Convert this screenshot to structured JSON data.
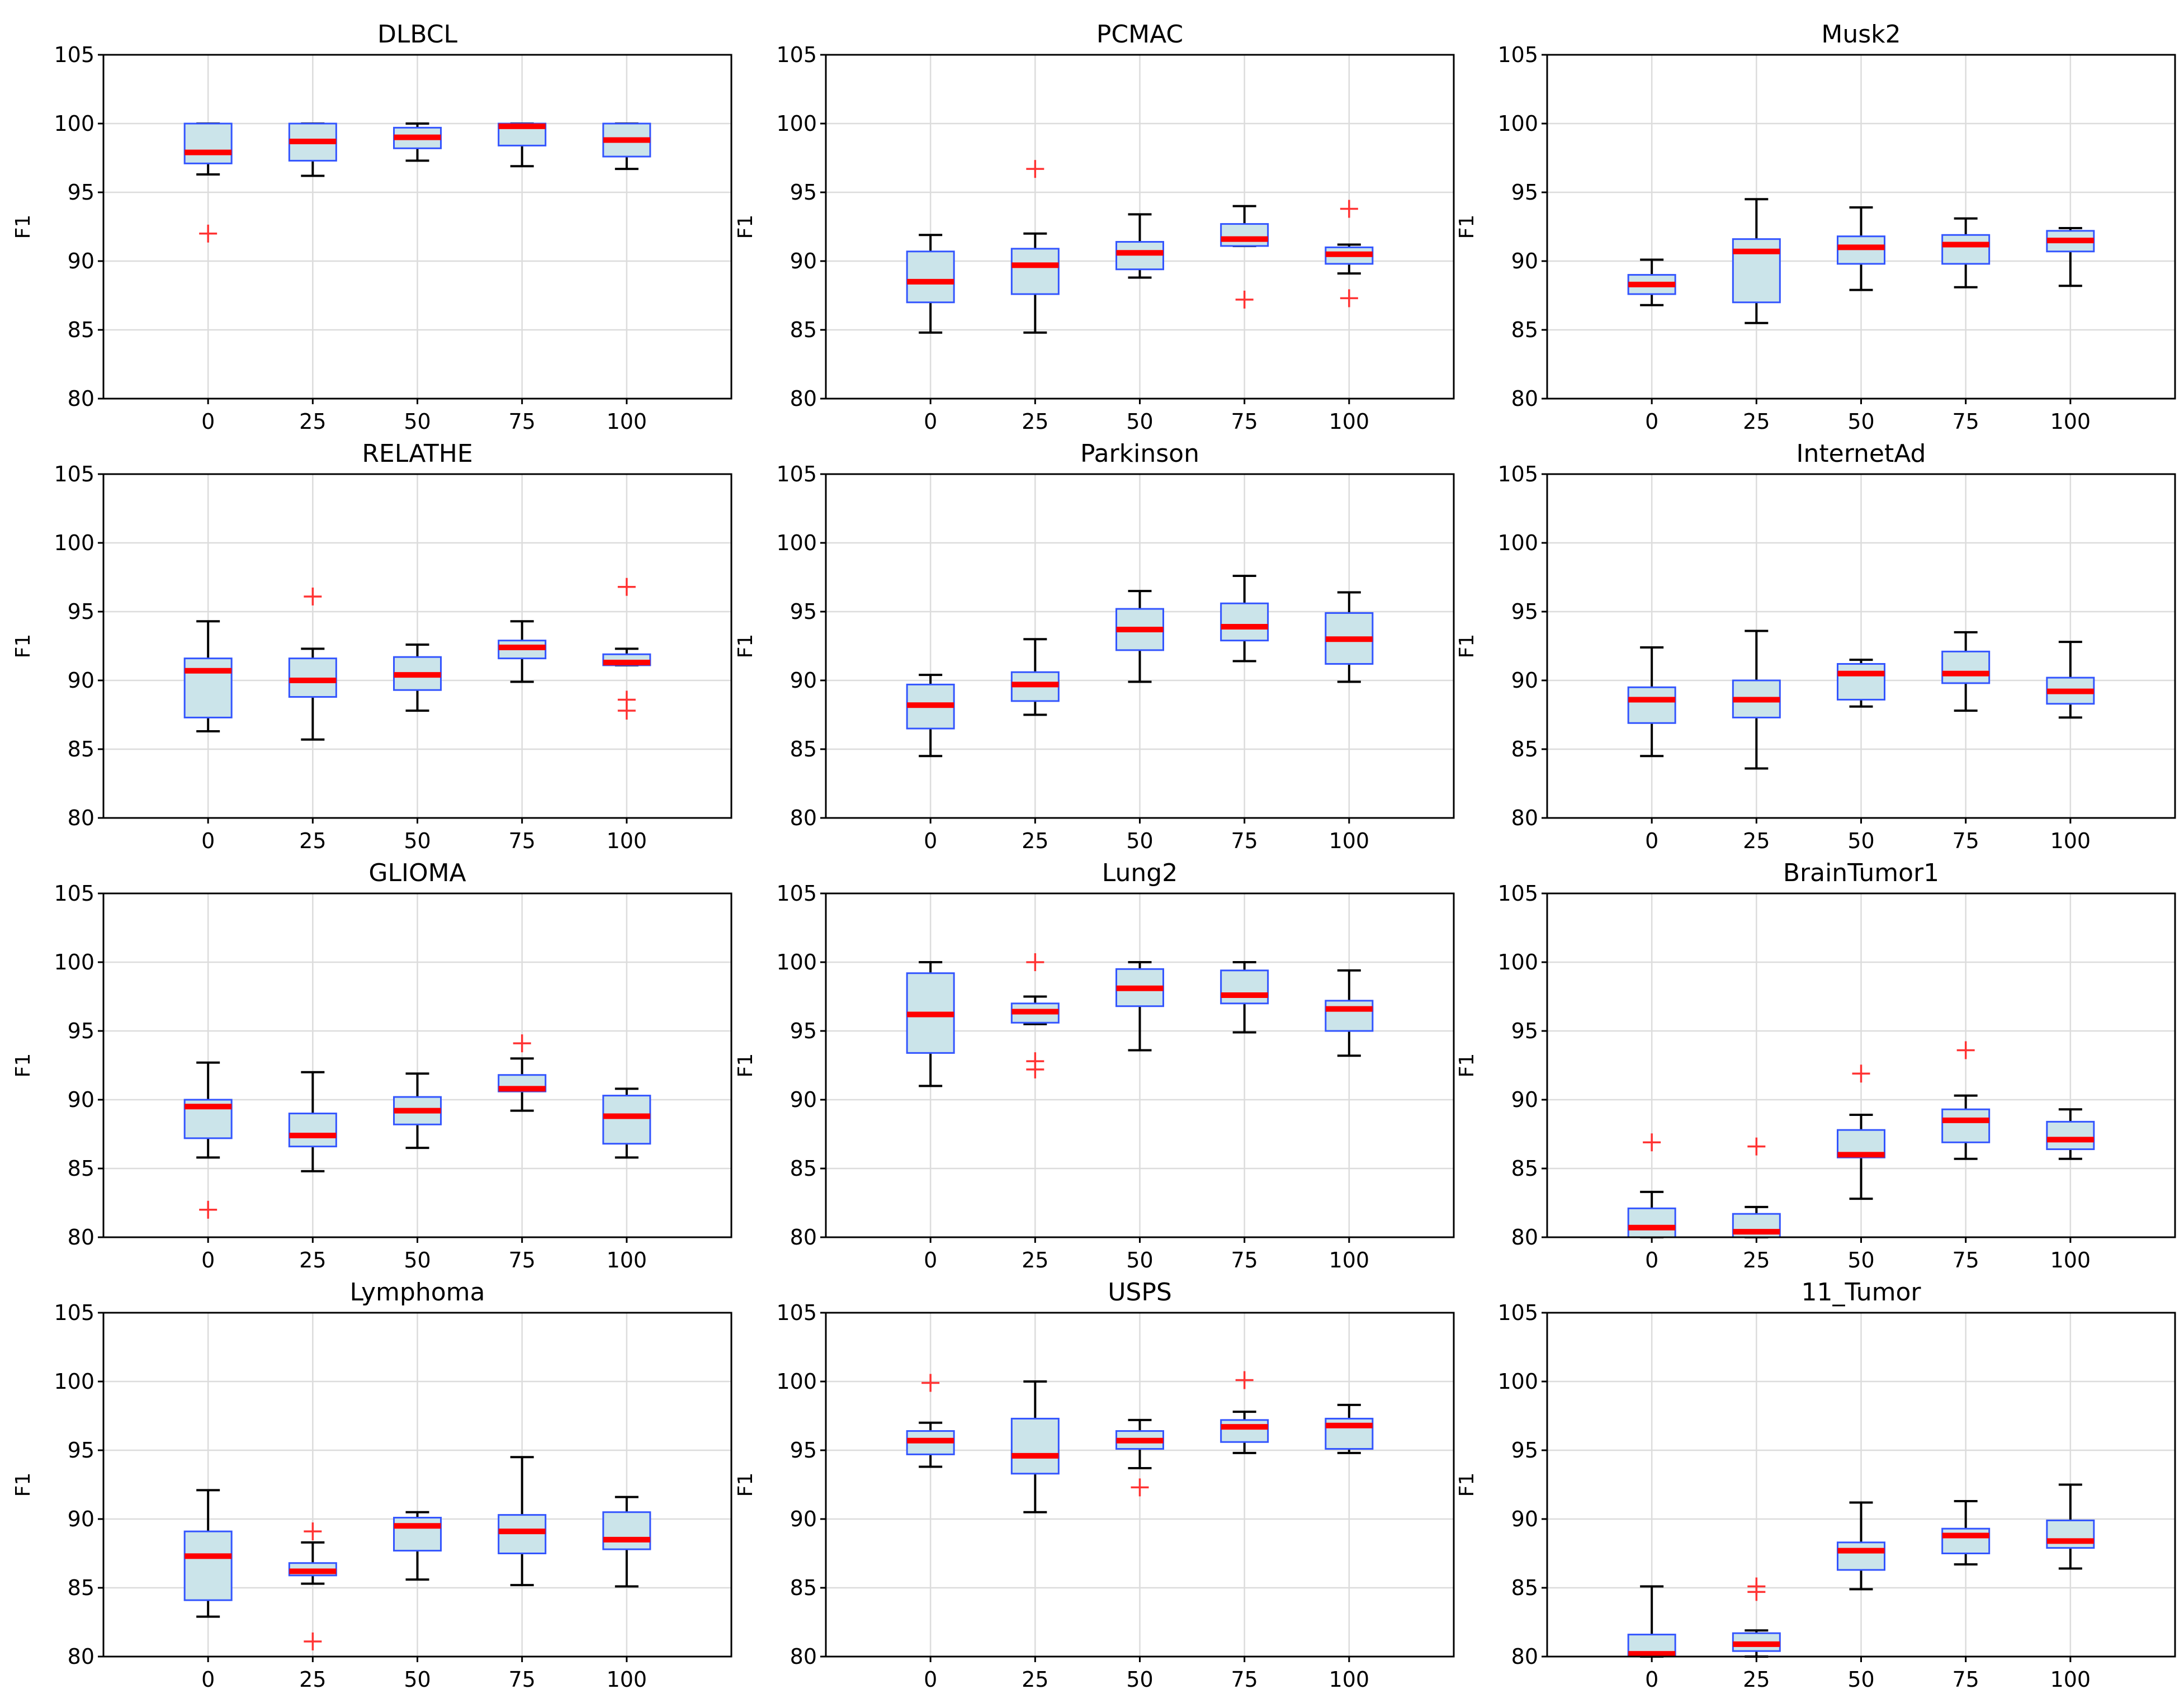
{
  "chart_data": {
    "type": "boxplot",
    "layout": "4x3 grid",
    "colors": {
      "box_fill": "#cbe4ea",
      "box_edge": "#3355ff",
      "median": "#ff0000",
      "flier": "#ff3333",
      "whisker": "#000000",
      "grid": "#dcdcdc"
    },
    "categories": [
      "0",
      "25",
      "50",
      "75",
      "100"
    ],
    "ylabel": "F1",
    "ylim": [
      80,
      105
    ],
    "yticks": [
      80,
      85,
      90,
      95,
      100,
      105
    ],
    "panels": [
      {
        "title": "DLBCL",
        "boxes": [
          {
            "q1": 97.1,
            "median": 97.9,
            "q3": 100.0,
            "whislo": 96.3,
            "whishi": 100.0,
            "fliers": [
              92.0
            ]
          },
          {
            "q1": 97.3,
            "median": 98.7,
            "q3": 100.0,
            "whislo": 96.2,
            "whishi": 100.0,
            "fliers": []
          },
          {
            "q1": 98.2,
            "median": 99.0,
            "q3": 99.7,
            "whislo": 97.3,
            "whishi": 100.0,
            "fliers": []
          },
          {
            "q1": 98.4,
            "median": 99.8,
            "q3": 100.0,
            "whislo": 96.9,
            "whishi": 100.0,
            "fliers": []
          },
          {
            "q1": 97.6,
            "median": 98.8,
            "q3": 100.0,
            "whislo": 96.7,
            "whishi": 100.0,
            "fliers": []
          }
        ]
      },
      {
        "title": "PCMAC",
        "boxes": [
          {
            "q1": 87.0,
            "median": 88.5,
            "q3": 90.7,
            "whislo": 84.8,
            "whishi": 91.9,
            "fliers": []
          },
          {
            "q1": 87.6,
            "median": 89.7,
            "q3": 90.9,
            "whislo": 84.8,
            "whishi": 92.0,
            "fliers": [
              96.7
            ]
          },
          {
            "q1": 89.4,
            "median": 90.6,
            "q3": 91.4,
            "whislo": 88.8,
            "whishi": 93.4,
            "fliers": []
          },
          {
            "q1": 91.1,
            "median": 91.6,
            "q3": 92.7,
            "whislo": 91.1,
            "whishi": 94.0,
            "fliers": [
              87.2
            ]
          },
          {
            "q1": 89.8,
            "median": 90.5,
            "q3": 91.0,
            "whislo": 89.1,
            "whishi": 91.2,
            "fliers": [
              93.8,
              87.3
            ]
          }
        ]
      },
      {
        "title": "Musk2",
        "boxes": [
          {
            "q1": 87.6,
            "median": 88.3,
            "q3": 89.0,
            "whislo": 86.8,
            "whishi": 90.1,
            "fliers": []
          },
          {
            "q1": 87.0,
            "median": 90.7,
            "q3": 91.6,
            "whislo": 85.5,
            "whishi": 94.5,
            "fliers": []
          },
          {
            "q1": 89.8,
            "median": 91.0,
            "q3": 91.8,
            "whislo": 87.9,
            "whishi": 93.9,
            "fliers": []
          },
          {
            "q1": 89.8,
            "median": 91.2,
            "q3": 91.9,
            "whislo": 88.1,
            "whishi": 93.1,
            "fliers": []
          },
          {
            "q1": 90.7,
            "median": 91.5,
            "q3": 92.2,
            "whislo": 88.2,
            "whishi": 92.4,
            "fliers": []
          }
        ]
      },
      {
        "title": "RELATHE",
        "boxes": [
          {
            "q1": 87.3,
            "median": 90.7,
            "q3": 91.6,
            "whislo": 86.3,
            "whishi": 94.3,
            "fliers": []
          },
          {
            "q1": 88.8,
            "median": 90.0,
            "q3": 91.6,
            "whislo": 85.7,
            "whishi": 92.3,
            "fliers": [
              96.1
            ]
          },
          {
            "q1": 89.3,
            "median": 90.4,
            "q3": 91.7,
            "whislo": 87.8,
            "whishi": 92.6,
            "fliers": []
          },
          {
            "q1": 91.6,
            "median": 92.4,
            "q3": 92.9,
            "whislo": 89.9,
            "whishi": 94.3,
            "fliers": []
          },
          {
            "q1": 91.1,
            "median": 91.3,
            "q3": 91.9,
            "whislo": 91.1,
            "whishi": 92.3,
            "fliers": [
              96.8,
              88.6,
              87.8
            ]
          }
        ]
      },
      {
        "title": "Parkinson",
        "boxes": [
          {
            "q1": 86.5,
            "median": 88.2,
            "q3": 89.7,
            "whislo": 84.5,
            "whishi": 90.4,
            "fliers": []
          },
          {
            "q1": 88.5,
            "median": 89.7,
            "q3": 90.6,
            "whislo": 87.5,
            "whishi": 93.0,
            "fliers": []
          },
          {
            "q1": 92.2,
            "median": 93.7,
            "q3": 95.2,
            "whislo": 89.9,
            "whishi": 96.5,
            "fliers": []
          },
          {
            "q1": 92.9,
            "median": 93.9,
            "q3": 95.6,
            "whislo": 91.4,
            "whishi": 97.6,
            "fliers": []
          },
          {
            "q1": 91.2,
            "median": 93.0,
            "q3": 94.9,
            "whislo": 89.9,
            "whishi": 96.4,
            "fliers": []
          }
        ]
      },
      {
        "title": "InternetAd",
        "boxes": [
          {
            "q1": 86.9,
            "median": 88.6,
            "q3": 89.5,
            "whislo": 84.5,
            "whishi": 92.4,
            "fliers": []
          },
          {
            "q1": 87.3,
            "median": 88.6,
            "q3": 90.0,
            "whislo": 83.6,
            "whishi": 93.6,
            "fliers": []
          },
          {
            "q1": 88.6,
            "median": 90.5,
            "q3": 91.2,
            "whislo": 88.1,
            "whishi": 91.5,
            "fliers": []
          },
          {
            "q1": 89.8,
            "median": 90.5,
            "q3": 92.1,
            "whislo": 87.8,
            "whishi": 93.5,
            "fliers": []
          },
          {
            "q1": 88.3,
            "median": 89.2,
            "q3": 90.2,
            "whislo": 87.3,
            "whishi": 92.8,
            "fliers": []
          }
        ]
      },
      {
        "title": "GLIOMA",
        "boxes": [
          {
            "q1": 87.2,
            "median": 89.5,
            "q3": 90.0,
            "whislo": 85.8,
            "whishi": 92.7,
            "fliers": [
              82.0
            ]
          },
          {
            "q1": 86.6,
            "median": 87.4,
            "q3": 89.0,
            "whislo": 84.8,
            "whishi": 92.0,
            "fliers": []
          },
          {
            "q1": 88.2,
            "median": 89.2,
            "q3": 90.2,
            "whislo": 86.5,
            "whishi": 91.9,
            "fliers": []
          },
          {
            "q1": 90.6,
            "median": 90.8,
            "q3": 91.8,
            "whislo": 89.2,
            "whishi": 93.0,
            "fliers": [
              94.1
            ]
          },
          {
            "q1": 86.8,
            "median": 88.8,
            "q3": 90.3,
            "whislo": 85.8,
            "whishi": 90.8,
            "fliers": []
          }
        ]
      },
      {
        "title": "Lung2",
        "boxes": [
          {
            "q1": 93.4,
            "median": 96.2,
            "q3": 99.2,
            "whislo": 91.0,
            "whishi": 100.0,
            "fliers": []
          },
          {
            "q1": 95.6,
            "median": 96.4,
            "q3": 97.0,
            "whislo": 95.5,
            "whishi": 97.5,
            "fliers": [
              100.0,
              92.8,
              92.2
            ]
          },
          {
            "q1": 96.8,
            "median": 98.1,
            "q3": 99.5,
            "whislo": 93.6,
            "whishi": 100.0,
            "fliers": []
          },
          {
            "q1": 97.0,
            "median": 97.6,
            "q3": 99.4,
            "whislo": 94.9,
            "whishi": 100.0,
            "fliers": []
          },
          {
            "q1": 95.0,
            "median": 96.6,
            "q3": 97.2,
            "whislo": 93.2,
            "whishi": 99.4,
            "fliers": []
          }
        ]
      },
      {
        "title": "BrainTumor1",
        "boxes": [
          {
            "q1": 80.0,
            "median": 80.7,
            "q3": 82.1,
            "whislo": 80.0,
            "whishi": 83.3,
            "fliers": [
              86.9
            ]
          },
          {
            "q1": 80.0,
            "median": 80.4,
            "q3": 81.7,
            "whislo": 80.0,
            "whishi": 82.2,
            "fliers": [
              86.6
            ]
          },
          {
            "q1": 85.8,
            "median": 86.0,
            "q3": 87.8,
            "whislo": 82.8,
            "whishi": 88.9,
            "fliers": [
              91.9
            ]
          },
          {
            "q1": 86.9,
            "median": 88.5,
            "q3": 89.3,
            "whislo": 85.7,
            "whishi": 90.3,
            "fliers": [
              93.6
            ]
          },
          {
            "q1": 86.4,
            "median": 87.1,
            "q3": 88.4,
            "whislo": 85.7,
            "whishi": 89.3,
            "fliers": []
          }
        ]
      },
      {
        "title": "Lymphoma",
        "boxes": [
          {
            "q1": 84.1,
            "median": 87.3,
            "q3": 89.1,
            "whislo": 82.9,
            "whishi": 92.1,
            "fliers": []
          },
          {
            "q1": 85.9,
            "median": 86.2,
            "q3": 86.8,
            "whislo": 85.3,
            "whishi": 88.3,
            "fliers": [
              89.1,
              81.1
            ]
          },
          {
            "q1": 87.7,
            "median": 89.5,
            "q3": 90.1,
            "whislo": 85.6,
            "whishi": 90.5,
            "fliers": []
          },
          {
            "q1": 87.5,
            "median": 89.1,
            "q3": 90.3,
            "whislo": 85.2,
            "whishi": 94.5,
            "fliers": []
          },
          {
            "q1": 87.8,
            "median": 88.5,
            "q3": 90.5,
            "whislo": 85.1,
            "whishi": 91.6,
            "fliers": []
          }
        ]
      },
      {
        "title": "USPS",
        "boxes": [
          {
            "q1": 94.7,
            "median": 95.7,
            "q3": 96.4,
            "whislo": 93.8,
            "whishi": 97.0,
            "fliers": [
              99.9
            ]
          },
          {
            "q1": 93.3,
            "median": 94.6,
            "q3": 97.3,
            "whislo": 90.5,
            "whishi": 100.0,
            "fliers": []
          },
          {
            "q1": 95.1,
            "median": 95.7,
            "q3": 96.4,
            "whislo": 93.7,
            "whishi": 97.2,
            "fliers": [
              92.3
            ]
          },
          {
            "q1": 95.6,
            "median": 96.7,
            "q3": 97.2,
            "whislo": 94.8,
            "whishi": 97.8,
            "fliers": [
              100.1
            ]
          },
          {
            "q1": 95.1,
            "median": 96.8,
            "q3": 97.3,
            "whislo": 94.8,
            "whishi": 98.3,
            "fliers": []
          }
        ]
      },
      {
        "title": "11_Tumor",
        "boxes": [
          {
            "q1": 80.0,
            "median": 80.2,
            "q3": 81.6,
            "whislo": 80.0,
            "whishi": 85.1,
            "fliers": []
          },
          {
            "q1": 80.4,
            "median": 80.9,
            "q3": 81.7,
            "whislo": 80.0,
            "whishi": 81.9,
            "fliers": [
              85.1,
              84.7
            ]
          },
          {
            "q1": 86.3,
            "median": 87.7,
            "q3": 88.3,
            "whislo": 84.9,
            "whishi": 91.2,
            "fliers": []
          },
          {
            "q1": 87.5,
            "median": 88.8,
            "q3": 89.3,
            "whislo": 86.7,
            "whishi": 91.3,
            "fliers": []
          },
          {
            "q1": 87.9,
            "median": 88.4,
            "q3": 89.9,
            "whislo": 86.4,
            "whishi": 92.5,
            "fliers": []
          }
        ]
      }
    ]
  }
}
